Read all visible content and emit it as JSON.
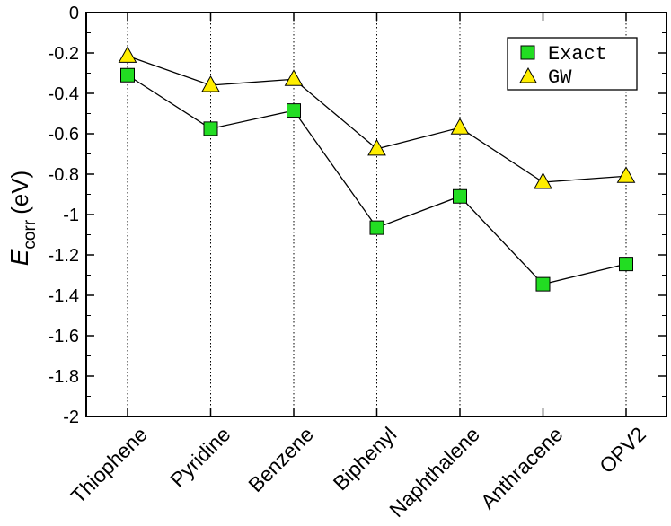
{
  "chart_data": {
    "type": "line",
    "categories": [
      "Thiophene",
      "Pyridine",
      "Benzene",
      "Biphenyl",
      "Naphthalene",
      "Anthracene",
      "OPV2"
    ],
    "series": [
      {
        "name": "Exact",
        "marker": "square",
        "color": "#22dd22",
        "values": [
          -0.31,
          -0.575,
          -0.485,
          -1.065,
          -0.91,
          -1.345,
          -1.245
        ]
      },
      {
        "name": "GW",
        "marker": "triangle",
        "color": "#ffee00",
        "values": [
          -0.215,
          -0.36,
          -0.33,
          -0.675,
          -0.57,
          -0.84,
          -0.81
        ]
      }
    ],
    "ylabel_main": "E",
    "ylabel_sub": "corr",
    "ylabel_unit": "(eV)",
    "ylim": [
      -2,
      0
    ],
    "yticks": [
      0,
      -0.2,
      -0.4,
      -0.6,
      -0.8,
      -1,
      -1.2,
      -1.4,
      -1.6,
      -1.8,
      -2
    ],
    "ytick_labels": [
      "0",
      "-0.2",
      "-0.4",
      "-0.6",
      "-0.8",
      "-1",
      "-1.2",
      "-1.4",
      "-1.6",
      "-1.8",
      "-2"
    ],
    "vertical_dotted_guides": true,
    "legend_position": "top-right"
  }
}
